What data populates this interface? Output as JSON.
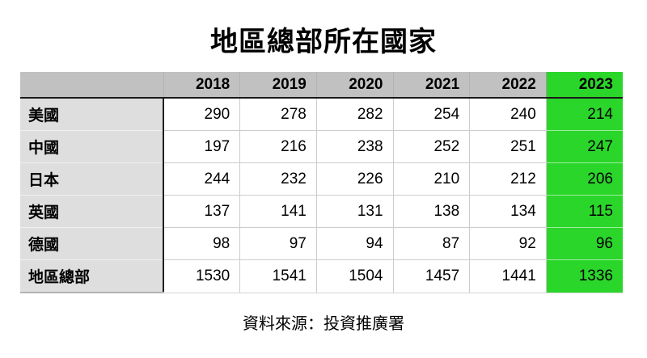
{
  "title": "地區總部所在國家",
  "source": "資料來源：投資推廣署",
  "colors": {
    "header_bg": "#c1c1c1",
    "row_label_bg": "#dedede",
    "highlight": "#2bd62b",
    "grid_line": "#cccccc",
    "strong_line": "#1a1a1a"
  },
  "chart_data": {
    "type": "table",
    "title": "地區總部所在國家",
    "columns": [
      "",
      "2018",
      "2019",
      "2020",
      "2021",
      "2022",
      "2023"
    ],
    "highlighted_column": "2023",
    "rows": [
      {
        "label": "美國",
        "values": [
          290,
          278,
          282,
          254,
          240,
          214
        ]
      },
      {
        "label": "中國",
        "values": [
          197,
          216,
          238,
          252,
          251,
          247
        ]
      },
      {
        "label": "日本",
        "values": [
          244,
          232,
          226,
          210,
          212,
          206
        ]
      },
      {
        "label": "英國",
        "values": [
          137,
          141,
          131,
          138,
          134,
          115
        ]
      },
      {
        "label": "德國",
        "values": [
          98,
          97,
          94,
          87,
          92,
          96
        ]
      },
      {
        "label": "地區總部",
        "values": [
          1530,
          1541,
          1504,
          1457,
          1441,
          1336
        ]
      }
    ],
    "source": "資料來源：投資推廣署"
  }
}
